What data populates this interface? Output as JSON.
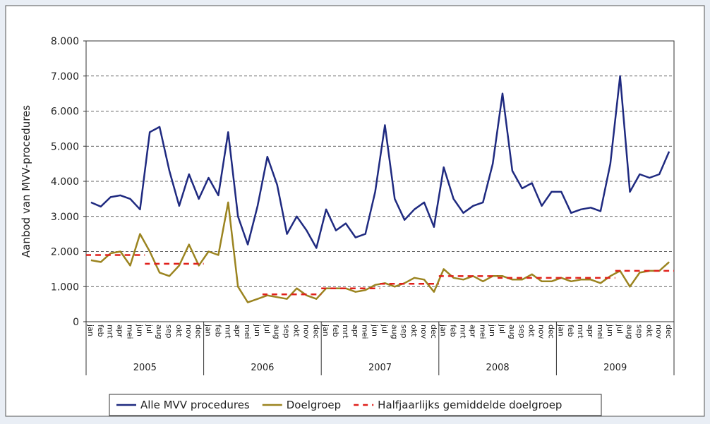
{
  "chart_data": {
    "type": "line",
    "y_label": "Aanbod van MVV-procedures",
    "ylim": [
      0,
      8000
    ],
    "yticks": [
      0,
      {
        "value": 1000,
        "label": "1.000"
      },
      {
        "value": 2000,
        "label": "2.000"
      },
      {
        "value": 3000,
        "label": "3.000"
      },
      {
        "value": 4000,
        "label": "4.000"
      },
      {
        "value": 5000,
        "label": "5.000"
      },
      {
        "value": 6000,
        "label": "6.000"
      },
      {
        "value": 7000,
        "label": "7.000"
      },
      {
        "value": 8000,
        "label": "8.000"
      }
    ],
    "grid": true,
    "categories": [
      "jan",
      "feb",
      "mrt",
      "apr",
      "mei",
      "jun",
      "jul",
      "aug",
      "sep",
      "okt",
      "nov",
      "dec",
      "jan",
      "feb",
      "mrt",
      "apr",
      "mei",
      "jun",
      "jul",
      "aug",
      "sep",
      "okt",
      "nov",
      "dec",
      "jan",
      "feb",
      "mrt",
      "apr",
      "mei",
      "jun",
      "jul",
      "aug",
      "sep",
      "okt",
      "nov",
      "dec",
      "jan",
      "feb",
      "mrt",
      "apr",
      "mei",
      "jun",
      "jul",
      "aug",
      "sep",
      "okt",
      "nov",
      "dec",
      "jan",
      "feb",
      "mrt",
      "apr",
      "mei",
      "jun",
      "jul",
      "aug",
      "sep",
      "okt",
      "nov",
      "dec"
    ],
    "category_groups": [
      "2005",
      "2006",
      "2007",
      "2008",
      "2009"
    ],
    "legend": "bottom",
    "series": [
      {
        "name": "Alle MVV procedures",
        "color": "#1f2a80",
        "style": "line",
        "values": [
          3400,
          3280,
          3550,
          3600,
          3500,
          3200,
          5400,
          5550,
          4300,
          3300,
          4200,
          3500,
          4100,
          3600,
          5400,
          3000,
          2200,
          3300,
          4700,
          3900,
          2500,
          3000,
          2600,
          2100,
          3200,
          2600,
          2800,
          2400,
          2500,
          3700,
          5600,
          3500,
          2900,
          3200,
          3400,
          2700,
          4400,
          3500,
          3100,
          3300,
          3400,
          4500,
          6500,
          4300,
          3800,
          3950,
          3300,
          3700,
          3700,
          3100,
          3200,
          3250,
          3150,
          4500,
          7000,
          3700,
          4200,
          4100,
          4200,
          4850
        ]
      },
      {
        "name": "Doelgroep",
        "color": "#9b8420",
        "style": "line",
        "values": [
          1750,
          1700,
          1950,
          2000,
          1600,
          2500,
          2000,
          1400,
          1300,
          1600,
          2200,
          1600,
          2000,
          1900,
          3400,
          1000,
          550,
          650,
          750,
          700,
          650,
          950,
          750,
          650,
          950,
          950,
          950,
          850,
          900,
          1050,
          1100,
          1000,
          1100,
          1250,
          1200,
          850,
          1500,
          1250,
          1200,
          1300,
          1150,
          1300,
          1300,
          1200,
          1200,
          1350,
          1150,
          1150,
          1250,
          1150,
          1200,
          1200,
          1100,
          1300,
          1450,
          1000,
          1400,
          1450,
          1450,
          1700
        ]
      },
      {
        "name": "Halfjaarlijks gemiddelde doelgroep",
        "color": "#e0201b",
        "style": "dashed-step",
        "values": [
          1900,
          1900,
          1900,
          1900,
          1900,
          1900,
          1650,
          1650,
          1650,
          1650,
          1650,
          1650,
          null,
          null,
          null,
          null,
          null,
          null,
          780,
          780,
          780,
          780,
          780,
          780,
          950,
          950,
          950,
          950,
          950,
          950,
          1080,
          1080,
          1080,
          1080,
          1080,
          1080,
          1300,
          1300,
          1300,
          1300,
          1300,
          1300,
          1250,
          1250,
          1250,
          1250,
          1250,
          1250,
          1250,
          1250,
          1250,
          1250,
          1250,
          1250,
          1450,
          1450,
          1450,
          1450,
          1450,
          1450
        ]
      }
    ]
  }
}
